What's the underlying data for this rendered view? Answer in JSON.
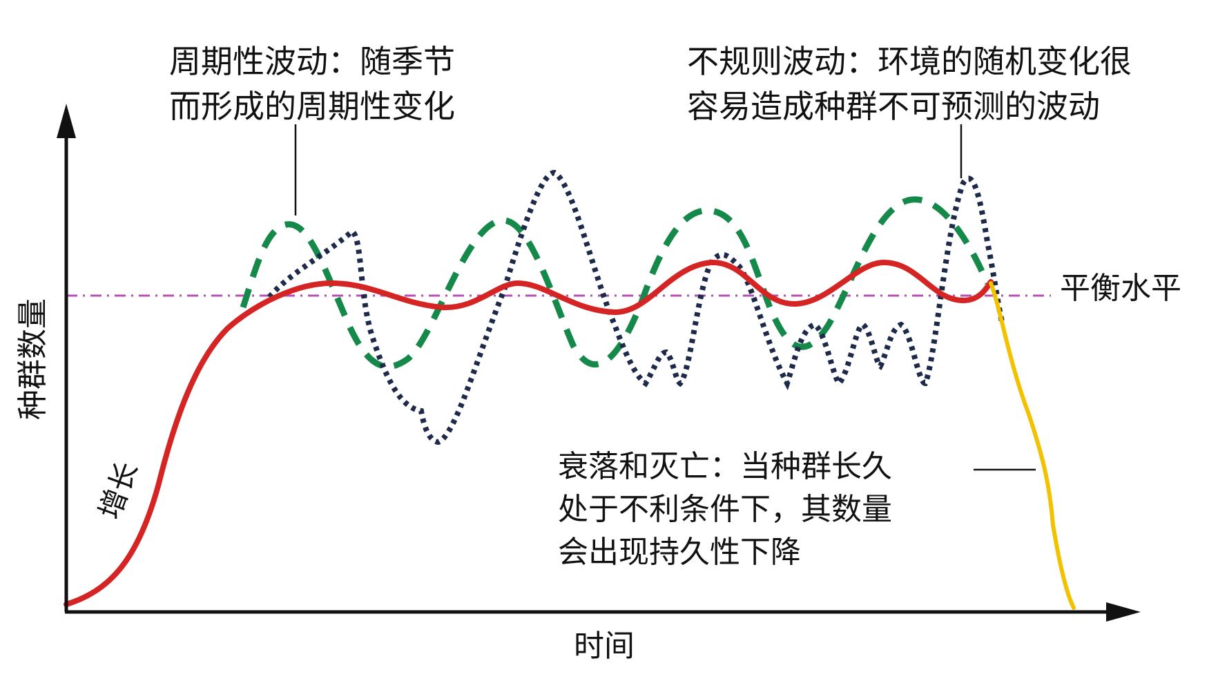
{
  "axes": {
    "x_label": "时间",
    "y_label": "种群数量"
  },
  "labels": {
    "growth": "增长",
    "equilibrium": "平衡水平",
    "periodic_line1": "周期性波动：随季节",
    "periodic_line2": "而形成的周期性变化",
    "irregular_line1": "不规则波动：环境的随机变化很",
    "irregular_line2": "容易造成种群不可预测的波动",
    "decline_line1": "衰落和灭亡：当种群长久",
    "decline_line2": "处于不利条件下，其数量",
    "decline_line3": "会出现持久性下降"
  },
  "colors": {
    "growth_curve": "#d42424",
    "periodic_curve": "#15894a",
    "irregular_curve": "#1e2a4a",
    "decline_curve": "#f2c200",
    "equilibrium_line": "#b54fb0",
    "axis": "#111111"
  }
}
